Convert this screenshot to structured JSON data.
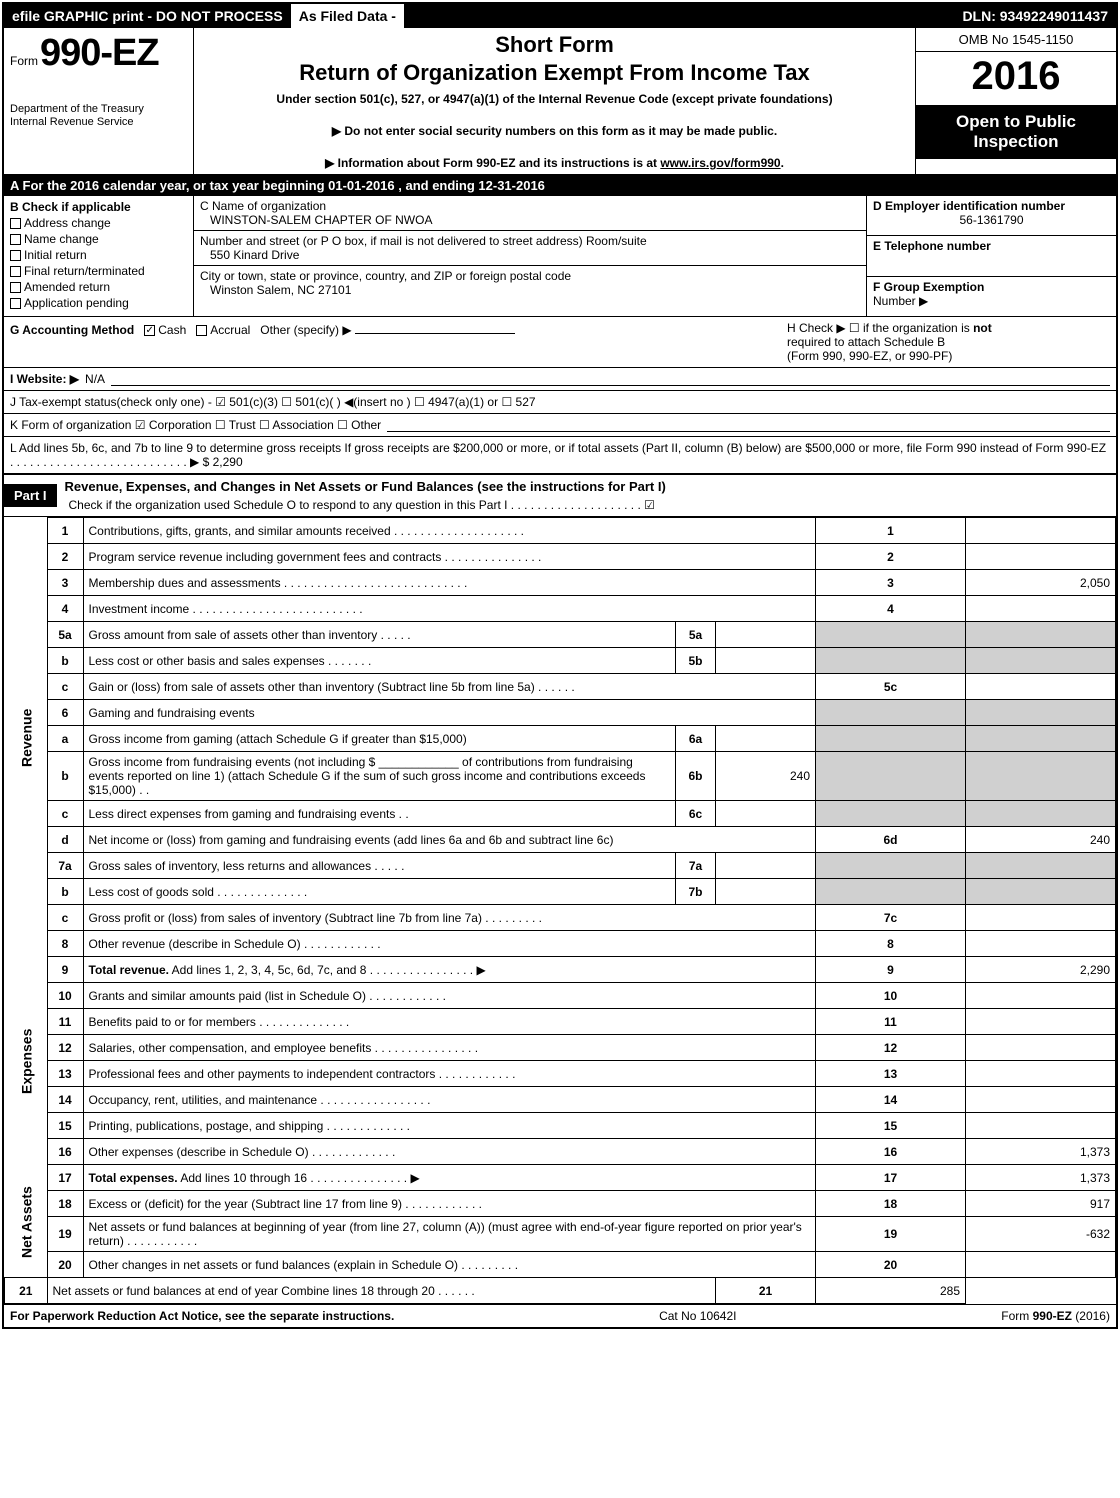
{
  "topbar": {
    "efile": "efile GRAPHIC print - DO NOT PROCESS",
    "asfiled": "As Filed Data -",
    "dln": "DLN: 93492249011437"
  },
  "header": {
    "form_small": "Form",
    "form_big": "990-EZ",
    "dept1": "Department of the Treasury",
    "dept2": "Internal Revenue Service",
    "short": "Short Form",
    "title": "Return of Organization Exempt From Income Tax",
    "under": "Under section 501(c), 527, or 4947(a)(1) of the Internal Revenue Code (except private foundations)",
    "instr1": "▶ Do not enter social security numbers on this form as it may be made public.",
    "instr2a": "▶ Information about Form 990-EZ and its instructions is at ",
    "instr2_link": "www.irs.gov/form990",
    "instr2b": ".",
    "omb": "OMB No 1545-1150",
    "year": "2016",
    "open": "Open to Public Inspection"
  },
  "rowA": "A  For the 2016 calendar year, or tax year beginning 01-01-2016            , and ending 12-31-2016",
  "B": {
    "title": "B  Check if applicable",
    "items": [
      "Address change",
      "Name change",
      "Initial return",
      "Final return/terminated",
      "Amended return",
      "Application pending"
    ]
  },
  "C": {
    "label": "C Name of organization",
    "name": "WINSTON-SALEM CHAPTER OF NWOA",
    "addr_label": "Number and street (or P  O  box, if mail is not delivered to street address)   Room/suite",
    "addr": "550 Kinard Drive",
    "city_label": "City or town, state or province, country, and ZIP or foreign postal code",
    "city": "Winston Salem, NC  27101"
  },
  "D": {
    "label": "D Employer identification number",
    "value": "56-1361790"
  },
  "E": {
    "label": "E Telephone number",
    "value": ""
  },
  "F": {
    "label": "F Group Exemption",
    "sub": "Number   ▶",
    "value": ""
  },
  "G": {
    "label": "G Accounting Method",
    "cash": "Cash",
    "accrual": "Accrual",
    "other": "Other (specify) ▶"
  },
  "H": {
    "text1": "H   Check ▶  ☐  if the organization is ",
    "not": "not",
    "text2": "required to attach Schedule B",
    "text3": "(Form 990, 990-EZ, or 990-PF)"
  },
  "I": {
    "label": "I Website: ▶",
    "value": "N/A"
  },
  "J": "J Tax-exempt status(check only one) - ☑ 501(c)(3)  ☐ 501(c)(  ) ◀(insert no ) ☐ 4947(a)(1) or  ☐ 527",
  "K": "K Form of organization    ☑ Corporation  ☐ Trust  ☐ Association  ☐ Other",
  "L": {
    "text": "L Add lines 5b, 6c, and 7b to line 9 to determine gross receipts  If gross receipts are $200,000 or more, or if total assets (Part II, column (B) below) are $500,000 or more, file Form 990 instead of Form 990-EZ  .  .  .  .  .  .  .  .  .  .  .  .  .  .  .  .  .  .  .  .  .  .  .  .  .  .  . ▶ $ ",
    "value": "2,290"
  },
  "partI": {
    "tag": "Part I",
    "title": "Revenue, Expenses, and Changes in Net Assets or Fund Balances (see the instructions for Part I)",
    "check": "Check if the organization used Schedule O to respond to any question in this Part I .  .  .  .  .  .  .  .  .  .  .  .  .  .  .  .  .  .  .  .  ☑"
  },
  "sections": {
    "revenue": "Revenue",
    "expenses": "Expenses",
    "netassets": "Net Assets"
  },
  "lines": [
    {
      "n": "1",
      "d": "Contributions, gifts, grants, and similar amounts received  .  .  .  .  .  .  .  .  .  .  .  .  .  .  .  .  .  .  .  .",
      "ln": "1",
      "v": ""
    },
    {
      "n": "2",
      "d": "Program service revenue including government fees and contracts  .  .  .  .  .  .  .  .  .  .  .  .  .  .  .",
      "ln": "2",
      "v": ""
    },
    {
      "n": "3",
      "d": "Membership dues and assessments  .  .  .  .  .  .  .  .  .  .  .  .  .  .  .  .  .  .  .  .  .  .  .  .  .  .  .  .",
      "ln": "3",
      "v": "2,050"
    },
    {
      "n": "4",
      "d": "Investment income  .  .  .  .  .  .  .  .  .  .  .  .  .  .  .  .  .  .  .  .  .  .  .  .  .  .",
      "ln": "4",
      "v": ""
    },
    {
      "n": "5a",
      "d": "Gross amount from sale of assets other than inventory  .  .  .  .  .",
      "sub": "5a",
      "subv": "",
      "grey": true
    },
    {
      "n": "b",
      "d": "Less  cost or other basis and sales expenses  .  .  .  .  .  .  .",
      "sub": "5b",
      "subv": "",
      "grey": true
    },
    {
      "n": "c",
      "d": "Gain or (loss) from sale of assets other than inventory (Subtract line 5b from line 5a) .  .  .  .  .  .",
      "ln": "5c",
      "v": ""
    },
    {
      "n": "6",
      "d": "Gaming and fundraising events",
      "grey": true
    },
    {
      "n": "a",
      "d": "Gross income from gaming (attach Schedule G if greater than $15,000)",
      "sub": "6a",
      "subv": "",
      "grey": true
    },
    {
      "n": "b",
      "d": "Gross income from fundraising events (not including $ ____________ of contributions from fundraising events reported on line 1) (attach Schedule G if the sum of such gross income and contributions exceeds $15,000)   .   .",
      "sub": "6b",
      "subv": "240",
      "grey": true
    },
    {
      "n": "c",
      "d": "Less  direct expenses from gaming and fundraising events     .   .",
      "sub": "6c",
      "subv": "",
      "grey": true
    },
    {
      "n": "d",
      "d": "Net income or (loss) from gaming and fundraising events (add lines 6a and 6b and subtract line 6c)",
      "ln": "6d",
      "v": "240"
    },
    {
      "n": "7a",
      "d": "Gross sales of inventory, less returns and allowances  .  .  .  .  .",
      "sub": "7a",
      "subv": "",
      "grey": true
    },
    {
      "n": "b",
      "d": "Less  cost of goods sold       .  .  .  .  .  .  .  .  .  .  .  .  .  .",
      "sub": "7b",
      "subv": "",
      "grey": true
    },
    {
      "n": "c",
      "d": "Gross profit or (loss) from sales of inventory (Subtract line 7b from line 7a) .  .  .  .  .  .  .  .  .",
      "ln": "7c",
      "v": ""
    },
    {
      "n": "8",
      "d": "Other revenue (describe in Schedule O)                 .  .  .  .  .  .  .  .  .  .  .  .",
      "ln": "8",
      "v": ""
    },
    {
      "n": "9",
      "d": "<b>Total revenue.</b> Add lines 1, 2, 3, 4, 5c, 6d, 7c, and 8  .  .  .  .  .  .  .  .  .  .  .  .  .  .  .  .   ▶",
      "ln": "9",
      "v": "2,290"
    },
    {
      "n": "10",
      "d": "Grants and similar amounts paid (list in Schedule O)         .  .  .  .  .  .  .  .  .  .  .  .",
      "ln": "10",
      "v": ""
    },
    {
      "n": "11",
      "d": "Benefits paid to or for members               .  .  .  .  .  .  .  .  .  .  .  .  .  .",
      "ln": "11",
      "v": ""
    },
    {
      "n": "12",
      "d": "Salaries, other compensation, and employee benefits  .  .  .  .  .  .  .  .  .  .  .  .  .  .  .  .",
      "ln": "12",
      "v": ""
    },
    {
      "n": "13",
      "d": "Professional fees and other payments to independent contractors   .  .  .  .  .  .  .  .  .  .  .  .",
      "ln": "13",
      "v": ""
    },
    {
      "n": "14",
      "d": "Occupancy, rent, utilities, and maintenance  .   .   .   .  .  .  .  .  .  .  .  .  .  .  .  .  .",
      "ln": "14",
      "v": ""
    },
    {
      "n": "15",
      "d": "Printing, publications, postage, and shipping           .  .  .  .  .  .  .  .  .  .  .  .  .",
      "ln": "15",
      "v": ""
    },
    {
      "n": "16",
      "d": "Other expenses (describe in Schedule O)             .  .  .  .  .  .  .  .  .  .  .  .  .",
      "ln": "16",
      "v": "1,373"
    },
    {
      "n": "17",
      "d": "<b>Total expenses.</b> Add lines 10 through 16       .  .  .  .  .  .  .  .  .  .  .  .  .  .  .   ▶",
      "ln": "17",
      "v": "1,373"
    },
    {
      "n": "18",
      "d": "Excess or (deficit) for the year (Subtract line 17 from line 9)      .  .  .  .  .  .  .  .  .  .  .  .",
      "ln": "18",
      "v": "917"
    },
    {
      "n": "19",
      "d": "Net assets or fund balances at beginning of year (from line 27, column (A)) (must agree with end-of-year figure reported on prior year's return)         .  .  .  .  .  .  .  .  .  .  .",
      "ln": "19",
      "v": "-632"
    },
    {
      "n": "20",
      "d": "Other changes in net assets or fund balances (explain in Schedule O)    .  .  .  .  .  .  .  .  .",
      "ln": "20",
      "v": ""
    },
    {
      "n": "21",
      "d": "Net assets or fund balances at end of year  Combine lines 18 through 20       .  .  .  .  .  .",
      "ln": "21",
      "v": "285"
    }
  ],
  "footer": {
    "left": "For Paperwork Reduction Act Notice, see the separate instructions.",
    "mid": "Cat No  10642I",
    "right": "Form 990-EZ (2016)"
  },
  "colors": {
    "black": "#000000",
    "white": "#ffffff",
    "grey": "#d0d0d0"
  }
}
